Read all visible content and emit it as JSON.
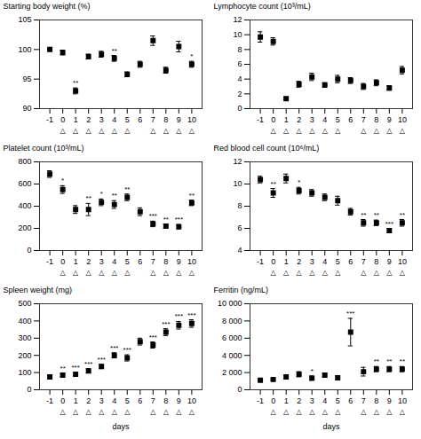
{
  "chart_data": [
    {
      "type": "scatter",
      "marker": "square",
      "color": "black",
      "x": [
        -1,
        0,
        1,
        2,
        3,
        4,
        5,
        6,
        7,
        8,
        9,
        10
      ],
      "values": [
        100.0,
        99.5,
        93.0,
        98.8,
        99.2,
        98.5,
        95.8,
        97.5,
        101.5,
        96.5,
        100.5,
        97.5
      ],
      "yerr": [
        0.0,
        0.4,
        0.5,
        0.4,
        0.5,
        0.5,
        0.4,
        0.5,
        0.8,
        0.5,
        0.9,
        0.5
      ],
      "ylabel": "Starting body weight (%)",
      "xlim": [
        -1.8,
        10.8
      ],
      "xticks": [
        -1,
        0,
        1,
        2,
        3,
        4,
        5,
        6,
        7,
        8,
        9,
        10
      ],
      "ylim": [
        90,
        105
      ],
      "yticks": [
        90,
        95,
        100,
        105
      ],
      "annotations": [
        {
          "x": 1,
          "text": "**",
          "anchor": "point"
        },
        {
          "x": 4,
          "text": "**",
          "anchor": "point"
        },
        {
          "x": 10,
          "text": "*",
          "anchor": "point"
        },
        {
          "x": 0,
          "text": "△",
          "anchor": "axis"
        },
        {
          "x": 1,
          "text": "△",
          "anchor": "axis"
        },
        {
          "x": 2,
          "text": "△",
          "anchor": "axis"
        },
        {
          "x": 3,
          "text": "△",
          "anchor": "axis"
        },
        {
          "x": 4,
          "text": "△",
          "anchor": "axis"
        },
        {
          "x": 5,
          "text": "△",
          "anchor": "axis"
        },
        {
          "x": 7,
          "text": "△",
          "anchor": "axis"
        },
        {
          "x": 8,
          "text": "△",
          "anchor": "axis"
        },
        {
          "x": 9,
          "text": "△",
          "anchor": "axis"
        },
        {
          "x": 10,
          "text": "△",
          "anchor": "axis"
        }
      ]
    },
    {
      "type": "scatter",
      "marker": "square",
      "color": "black",
      "x": [
        -1,
        0,
        1,
        2,
        3,
        4,
        5,
        6,
        7,
        8,
        9,
        10
      ],
      "values": [
        9.7,
        9.1,
        1.35,
        3.3,
        4.3,
        3.2,
        4.0,
        3.8,
        3.0,
        3.5,
        2.8,
        5.2
      ],
      "yerr": [
        0.7,
        0.5,
        0.15,
        0.4,
        0.5,
        0.3,
        0.5,
        0.4,
        0.4,
        0.4,
        0.3,
        0.5
      ],
      "ylabel": "Lymphocyte count (10³/mL)",
      "xlim": [
        -1.8,
        10.8
      ],
      "xticks": [
        -1,
        0,
        1,
        2,
        3,
        4,
        5,
        6,
        7,
        8,
        9,
        10
      ],
      "ylim": [
        0,
        12
      ],
      "yticks": [
        0,
        2,
        4,
        6,
        8,
        10,
        12
      ],
      "annotations": [
        {
          "x": 0,
          "text": "△",
          "anchor": "axis"
        },
        {
          "x": 1,
          "text": "△",
          "anchor": "axis"
        },
        {
          "x": 2,
          "text": "△",
          "anchor": "axis"
        },
        {
          "x": 3,
          "text": "△",
          "anchor": "axis"
        },
        {
          "x": 4,
          "text": "△",
          "anchor": "axis"
        },
        {
          "x": 5,
          "text": "△",
          "anchor": "axis"
        },
        {
          "x": 7,
          "text": "△",
          "anchor": "axis"
        },
        {
          "x": 8,
          "text": "△",
          "anchor": "axis"
        },
        {
          "x": 9,
          "text": "△",
          "anchor": "axis"
        },
        {
          "x": 10,
          "text": "△",
          "anchor": "axis"
        }
      ]
    },
    {
      "type": "scatter",
      "marker": "square",
      "color": "black",
      "x": [
        -1,
        0,
        1,
        2,
        3,
        4,
        5,
        6,
        7,
        8,
        9,
        10
      ],
      "values": [
        690,
        550,
        370,
        370,
        435,
        415,
        480,
        350,
        240,
        220,
        215,
        430
      ],
      "yerr": [
        30,
        35,
        35,
        55,
        30,
        35,
        30,
        35,
        25,
        20,
        20,
        25
      ],
      "ylabel": "Platelet count (10³/mL)",
      "xlim": [
        -1.8,
        10.8
      ],
      "xticks": [
        -1,
        0,
        1,
        2,
        3,
        4,
        5,
        6,
        7,
        8,
        9,
        10
      ],
      "ylim": [
        0,
        800
      ],
      "yticks": [
        0,
        200,
        400,
        600,
        800
      ],
      "annotations": [
        {
          "x": 0,
          "text": "*",
          "anchor": "point"
        },
        {
          "x": 2,
          "text": "**",
          "anchor": "point"
        },
        {
          "x": 3,
          "text": "*",
          "anchor": "point"
        },
        {
          "x": 4,
          "text": "**",
          "anchor": "point"
        },
        {
          "x": 5,
          "text": "**",
          "anchor": "point"
        },
        {
          "x": 7,
          "text": "***",
          "anchor": "point"
        },
        {
          "x": 8,
          "text": "**",
          "anchor": "point"
        },
        {
          "x": 9,
          "text": "***",
          "anchor": "point"
        },
        {
          "x": 10,
          "text": "**",
          "anchor": "point"
        },
        {
          "x": 0,
          "text": "△",
          "anchor": "axis"
        },
        {
          "x": 1,
          "text": "△",
          "anchor": "axis"
        },
        {
          "x": 2,
          "text": "△",
          "anchor": "axis"
        },
        {
          "x": 3,
          "text": "△",
          "anchor": "axis"
        },
        {
          "x": 4,
          "text": "△",
          "anchor": "axis"
        },
        {
          "x": 5,
          "text": "△",
          "anchor": "axis"
        },
        {
          "x": 7,
          "text": "△",
          "anchor": "axis"
        },
        {
          "x": 8,
          "text": "△",
          "anchor": "axis"
        },
        {
          "x": 9,
          "text": "△",
          "anchor": "axis"
        },
        {
          "x": 10,
          "text": "△",
          "anchor": "axis"
        }
      ]
    },
    {
      "type": "scatter",
      "marker": "square",
      "color": "black",
      "x": [
        -1,
        0,
        1,
        2,
        3,
        4,
        5,
        6,
        7,
        8,
        9,
        10
      ],
      "values": [
        10.4,
        9.2,
        10.5,
        9.4,
        9.2,
        8.8,
        8.5,
        7.5,
        6.5,
        6.5,
        5.8,
        6.5
      ],
      "yerr": [
        0.3,
        0.4,
        0.4,
        0.3,
        0.3,
        0.3,
        0.4,
        0.3,
        0.3,
        0.25,
        0.2,
        0.3
      ],
      "ylabel": "Red blood cell count (10⁶/mL)",
      "xlim": [
        -1.8,
        10.8
      ],
      "xticks": [
        -1,
        0,
        1,
        2,
        3,
        4,
        5,
        6,
        7,
        8,
        9,
        10
      ],
      "ylim": [
        4,
        12
      ],
      "yticks": [
        4,
        6,
        8,
        10,
        12
      ],
      "annotations": [
        {
          "x": 0,
          "text": "**",
          "anchor": "point"
        },
        {
          "x": 2,
          "text": "*",
          "anchor": "point"
        },
        {
          "x": 7,
          "text": "**",
          "anchor": "point"
        },
        {
          "x": 8,
          "text": "**",
          "anchor": "point"
        },
        {
          "x": 9,
          "text": "***",
          "anchor": "point"
        },
        {
          "x": 10,
          "text": "**",
          "anchor": "point"
        },
        {
          "x": 0,
          "text": "△",
          "anchor": "axis"
        },
        {
          "x": 1,
          "text": "△",
          "anchor": "axis"
        },
        {
          "x": 2,
          "text": "△",
          "anchor": "axis"
        },
        {
          "x": 3,
          "text": "△",
          "anchor": "axis"
        },
        {
          "x": 4,
          "text": "△",
          "anchor": "axis"
        },
        {
          "x": 5,
          "text": "△",
          "anchor": "axis"
        },
        {
          "x": 7,
          "text": "△",
          "anchor": "axis"
        },
        {
          "x": 8,
          "text": "△",
          "anchor": "axis"
        },
        {
          "x": 9,
          "text": "△",
          "anchor": "axis"
        },
        {
          "x": 10,
          "text": "△",
          "anchor": "axis"
        }
      ]
    },
    {
      "type": "scatter",
      "marker": "square",
      "color": "black",
      "x": [
        -1,
        0,
        1,
        2,
        3,
        4,
        5,
        6,
        7,
        8,
        9,
        10
      ],
      "values": [
        75,
        85,
        90,
        110,
        135,
        200,
        185,
        280,
        260,
        335,
        375,
        385
      ],
      "yerr": [
        8,
        8,
        10,
        12,
        12,
        15,
        18,
        20,
        18,
        20,
        22,
        22
      ],
      "ylabel": "Spleen weight (mg)",
      "xlabel": "days",
      "xlim": [
        -1.8,
        10.8
      ],
      "xticks": [
        -1,
        0,
        1,
        2,
        3,
        4,
        5,
        6,
        7,
        8,
        9,
        10
      ],
      "ylim": [
        0,
        500
      ],
      "yticks": [
        0,
        100,
        200,
        300,
        400,
        500
      ],
      "annotations": [
        {
          "x": 0,
          "text": "**",
          "anchor": "point"
        },
        {
          "x": 1,
          "text": "***",
          "anchor": "point"
        },
        {
          "x": 2,
          "text": "***",
          "anchor": "point"
        },
        {
          "x": 3,
          "text": "***",
          "anchor": "point"
        },
        {
          "x": 4,
          "text": "***",
          "anchor": "point"
        },
        {
          "x": 5,
          "text": "***",
          "anchor": "point"
        },
        {
          "x": 7,
          "text": "***",
          "anchor": "point"
        },
        {
          "x": 8,
          "text": "***",
          "anchor": "point"
        },
        {
          "x": 9,
          "text": "***",
          "anchor": "point"
        },
        {
          "x": 10,
          "text": "***",
          "anchor": "point"
        },
        {
          "x": 0,
          "text": "△",
          "anchor": "axis"
        },
        {
          "x": 1,
          "text": "△",
          "anchor": "axis"
        },
        {
          "x": 2,
          "text": "△",
          "anchor": "axis"
        },
        {
          "x": 3,
          "text": "△",
          "anchor": "axis"
        },
        {
          "x": 4,
          "text": "△",
          "anchor": "axis"
        },
        {
          "x": 5,
          "text": "△",
          "anchor": "axis"
        },
        {
          "x": 7,
          "text": "△",
          "anchor": "axis"
        },
        {
          "x": 8,
          "text": "△",
          "anchor": "axis"
        },
        {
          "x": 9,
          "text": "△",
          "anchor": "axis"
        },
        {
          "x": 10,
          "text": "△",
          "anchor": "axis"
        }
      ]
    },
    {
      "type": "scatter",
      "marker": "square",
      "color": "black",
      "x": [
        -1,
        0,
        1,
        2,
        3,
        4,
        5,
        6,
        7,
        8,
        9,
        10
      ],
      "values": [
        1100,
        1200,
        1500,
        1800,
        1350,
        1700,
        1400,
        6700,
        2100,
        2400,
        2400,
        2400
      ],
      "yerr": [
        100,
        100,
        200,
        300,
        250,
        200,
        200,
        1600,
        500,
        300,
        300,
        300
      ],
      "ylabel": "Ferritin (ng/mL)",
      "xlabel": "days",
      "xlim": [
        -1.8,
        10.8
      ],
      "xticks": [
        -1,
        0,
        1,
        2,
        3,
        4,
        5,
        6,
        7,
        8,
        9,
        10
      ],
      "ylim": [
        0,
        10000
      ],
      "yticks": [
        0,
        {
          "value": 2000,
          "label": "2 000"
        },
        {
          "value": 4000,
          "label": "4 000"
        },
        {
          "value": 6000,
          "label": "6 000"
        },
        {
          "value": 8000,
          "label": "8 000"
        },
        {
          "value": 10000,
          "label": "10 000"
        }
      ],
      "annotations": [
        {
          "x": 3,
          "text": "*",
          "anchor": "point"
        },
        {
          "x": 6,
          "text": "***",
          "anchor": "point"
        },
        {
          "x": 8,
          "text": "**",
          "anchor": "point"
        },
        {
          "x": 9,
          "text": "**",
          "anchor": "point"
        },
        {
          "x": 10,
          "text": "**",
          "anchor": "point"
        },
        {
          "x": 0,
          "text": "△",
          "anchor": "axis"
        },
        {
          "x": 1,
          "text": "△",
          "anchor": "axis"
        },
        {
          "x": 2,
          "text": "△",
          "anchor": "axis"
        },
        {
          "x": 3,
          "text": "△",
          "anchor": "axis"
        },
        {
          "x": 4,
          "text": "△",
          "anchor": "axis"
        },
        {
          "x": 5,
          "text": "△",
          "anchor": "axis"
        },
        {
          "x": 7,
          "text": "△",
          "anchor": "axis"
        },
        {
          "x": 8,
          "text": "△",
          "anchor": "axis"
        },
        {
          "x": 9,
          "text": "△",
          "anchor": "axis"
        },
        {
          "x": 10,
          "text": "△",
          "anchor": "axis"
        }
      ]
    }
  ]
}
